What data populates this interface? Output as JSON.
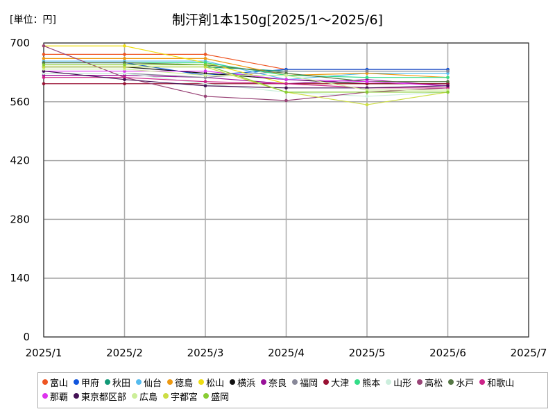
{
  "chart_data": {
    "type": "line",
    "title": "制汗剤1本150g[2025/1～2025/6]",
    "unit_label": "[単位：円]",
    "x_ticks": [
      "2025/1",
      "2025/2",
      "2025/3",
      "2025/4",
      "2025/5",
      "2025/6",
      "2025/7"
    ],
    "y_ticks": [
      0,
      140,
      280,
      420,
      560,
      700
    ],
    "ylim": [
      0,
      700
    ],
    "grid": true,
    "legend_position": "bottom",
    "series": [
      {
        "name": "富山",
        "color": "#ee5522",
        "values": [
          673,
          673,
          673,
          637,
          637,
          637
        ]
      },
      {
        "name": "甲府",
        "color": "#1155dd",
        "values": [
          653,
          653,
          623,
          637,
          637,
          637
        ]
      },
      {
        "name": "秋田",
        "color": "#119977",
        "values": [
          643,
          643,
          643,
          633,
          633,
          633
        ]
      },
      {
        "name": "仙台",
        "color": "#55bbee",
        "values": [
          657,
          657,
          657,
          613,
          628,
          628
        ]
      },
      {
        "name": "徳島",
        "color": "#ee9911",
        "values": [
          663,
          663,
          663,
          623,
          628,
          618
        ]
      },
      {
        "name": "松山",
        "color": "#eedd11",
        "values": [
          693,
          693,
          653,
          603,
          603,
          603
        ]
      },
      {
        "name": "横浜",
        "color": "#111111",
        "values": [
          643,
          643,
          628,
          613,
          603,
          603
        ]
      },
      {
        "name": "奈良",
        "color": "#991199",
        "values": [
          623,
          623,
          618,
          603,
          613,
          598
        ]
      },
      {
        "name": "福岡",
        "color": "#888899",
        "values": [
          628,
          628,
          618,
          633,
          633,
          633
        ]
      },
      {
        "name": "大津",
        "color": "#991133",
        "values": [
          603,
          603,
          603,
          603,
          603,
          603
        ]
      },
      {
        "name": "熊本",
        "color": "#33dd88",
        "values": [
          653,
          653,
          653,
          623,
          618,
          618
        ]
      },
      {
        "name": "山形",
        "color": "#cceedd",
        "values": [
          628,
          628,
          603,
          583,
          573,
          583
        ]
      },
      {
        "name": "高松",
        "color": "#994477",
        "values": [
          693,
          618,
          573,
          563,
          583,
          593
        ]
      },
      {
        "name": "水戸",
        "color": "#557744",
        "values": [
          653,
          653,
          648,
          628,
          608,
          608
        ]
      },
      {
        "name": "和歌山",
        "color": "#cc2288",
        "values": [
          618,
          618,
          608,
          603,
          593,
          593
        ]
      },
      {
        "name": "那覇",
        "color": "#dd33ee",
        "values": [
          633,
          633,
          633,
          613,
          608,
          598
        ]
      },
      {
        "name": "東京都区部",
        "color": "#441155",
        "values": [
          633,
          613,
          598,
          593,
          593,
          598
        ]
      },
      {
        "name": "広島",
        "color": "#ccee99",
        "values": [
          638,
          638,
          623,
          623,
          588,
          588
        ]
      },
      {
        "name": "宇都宮",
        "color": "#ccdd44",
        "values": [
          643,
          643,
          643,
          583,
          553,
          583
        ]
      },
      {
        "name": "盛岡",
        "color": "#88cc33",
        "values": [
          648,
          648,
          648,
          583,
          583,
          583
        ]
      }
    ]
  }
}
